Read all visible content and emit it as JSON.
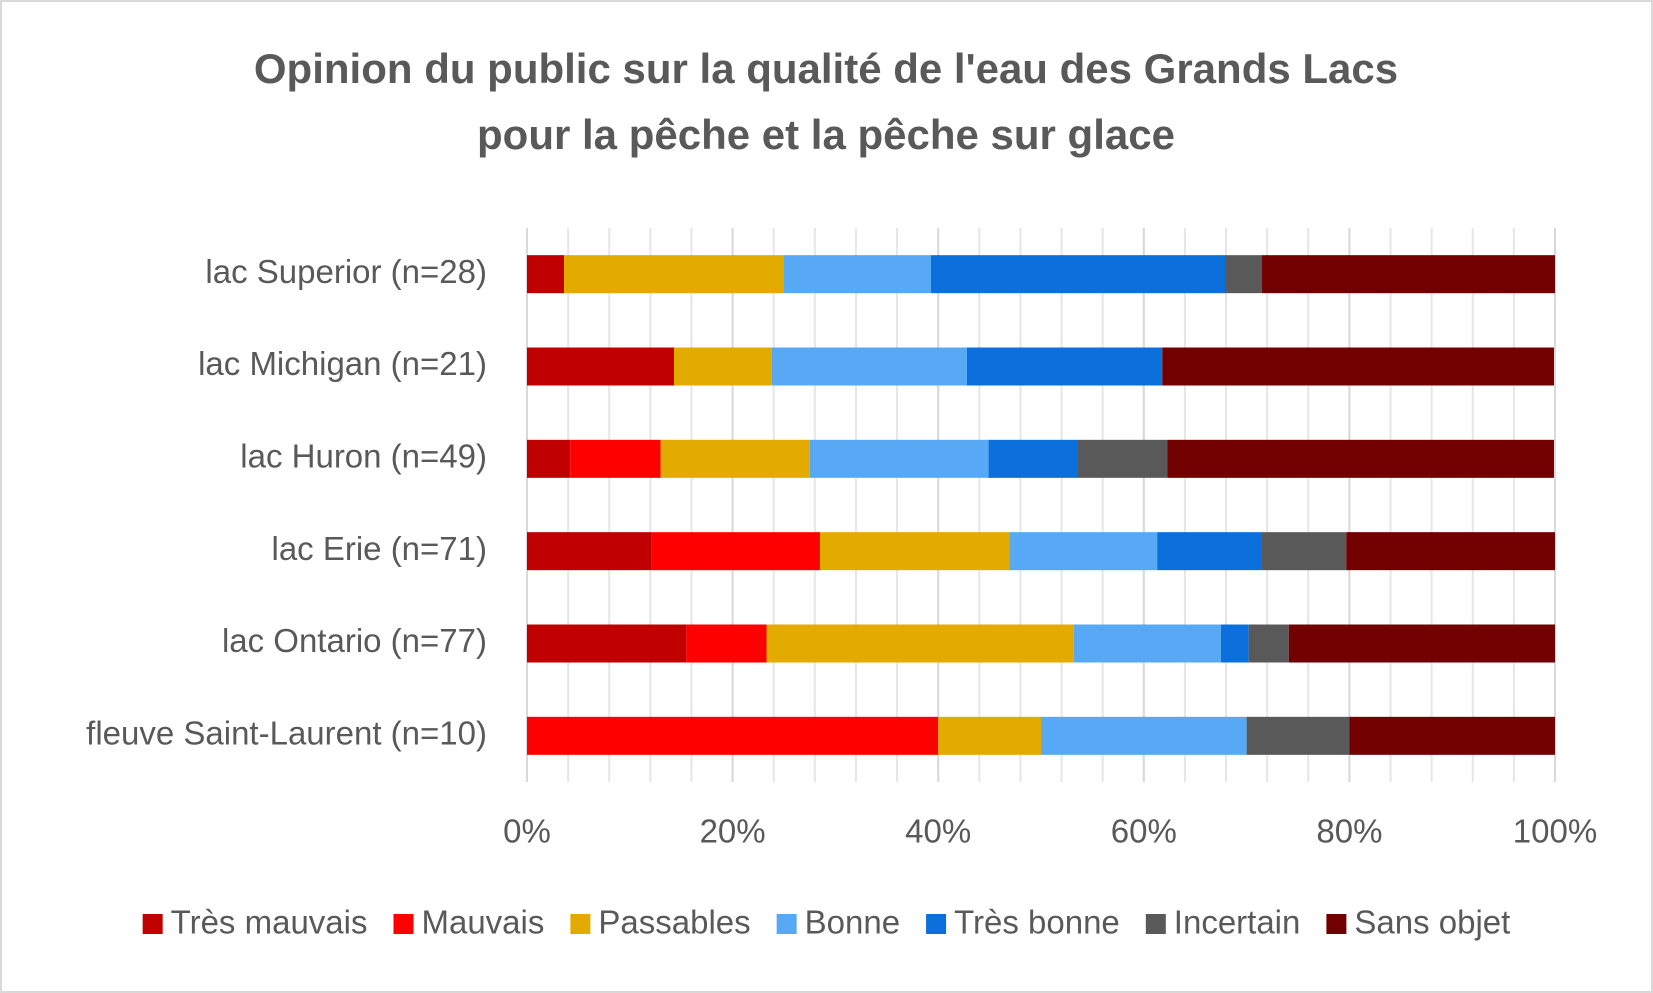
{
  "chart_data": {
    "type": "stacked-bar-horizontal",
    "title": [
      "Opinion du public sur la qualité de l'eau des Grands Lacs",
      "pour la pêche et la pêche sur glace"
    ],
    "categories": [
      "lac Superior (n=28)",
      "lac Michigan (n=21)",
      "lac Huron (n=49)",
      "lac Erie (n=71)",
      "lac Ontario (n=77)",
      "fleuve Saint-Laurent (n=10)"
    ],
    "series": [
      {
        "name": "Très mauvais",
        "color": "#c00000",
        "values": [
          3.6,
          14.3,
          4.2,
          12.1,
          15.5,
          0
        ]
      },
      {
        "name": "Mauvais",
        "color": "#ff0000",
        "values": [
          0,
          0,
          8.8,
          16.4,
          7.8,
          40
        ]
      },
      {
        "name": "Passables",
        "color": "#e3aa00",
        "values": [
          21.4,
          9.5,
          14.5,
          18.4,
          29.9,
          10
        ]
      },
      {
        "name": "Bonne",
        "color": "#57a9f5",
        "values": [
          14.3,
          19.0,
          17.4,
          14.4,
          14.3,
          20
        ]
      },
      {
        "name": "Très bonne",
        "color": "#0b6fdc",
        "values": [
          28.6,
          19.0,
          8.7,
          10.2,
          2.7,
          0
        ]
      },
      {
        "name": "Incertain",
        "color": "#595959",
        "values": [
          3.6,
          0,
          8.7,
          8.2,
          3.9,
          10
        ]
      },
      {
        "name": "Sans objet",
        "color": "#720000",
        "values": [
          28.5,
          38.1,
          37.6,
          20.3,
          25.9,
          20
        ]
      }
    ],
    "xlim": [
      0,
      100
    ],
    "xticks": [
      {
        "value": 0,
        "label": "0%"
      },
      {
        "value": 20,
        "label": "20%"
      },
      {
        "value": 40,
        "label": "40%"
      },
      {
        "value": 60,
        "label": "60%"
      },
      {
        "value": 80,
        "label": "80%"
      },
      {
        "value": 100,
        "label": "100%"
      }
    ],
    "grid": true,
    "legend": "bottom"
  }
}
